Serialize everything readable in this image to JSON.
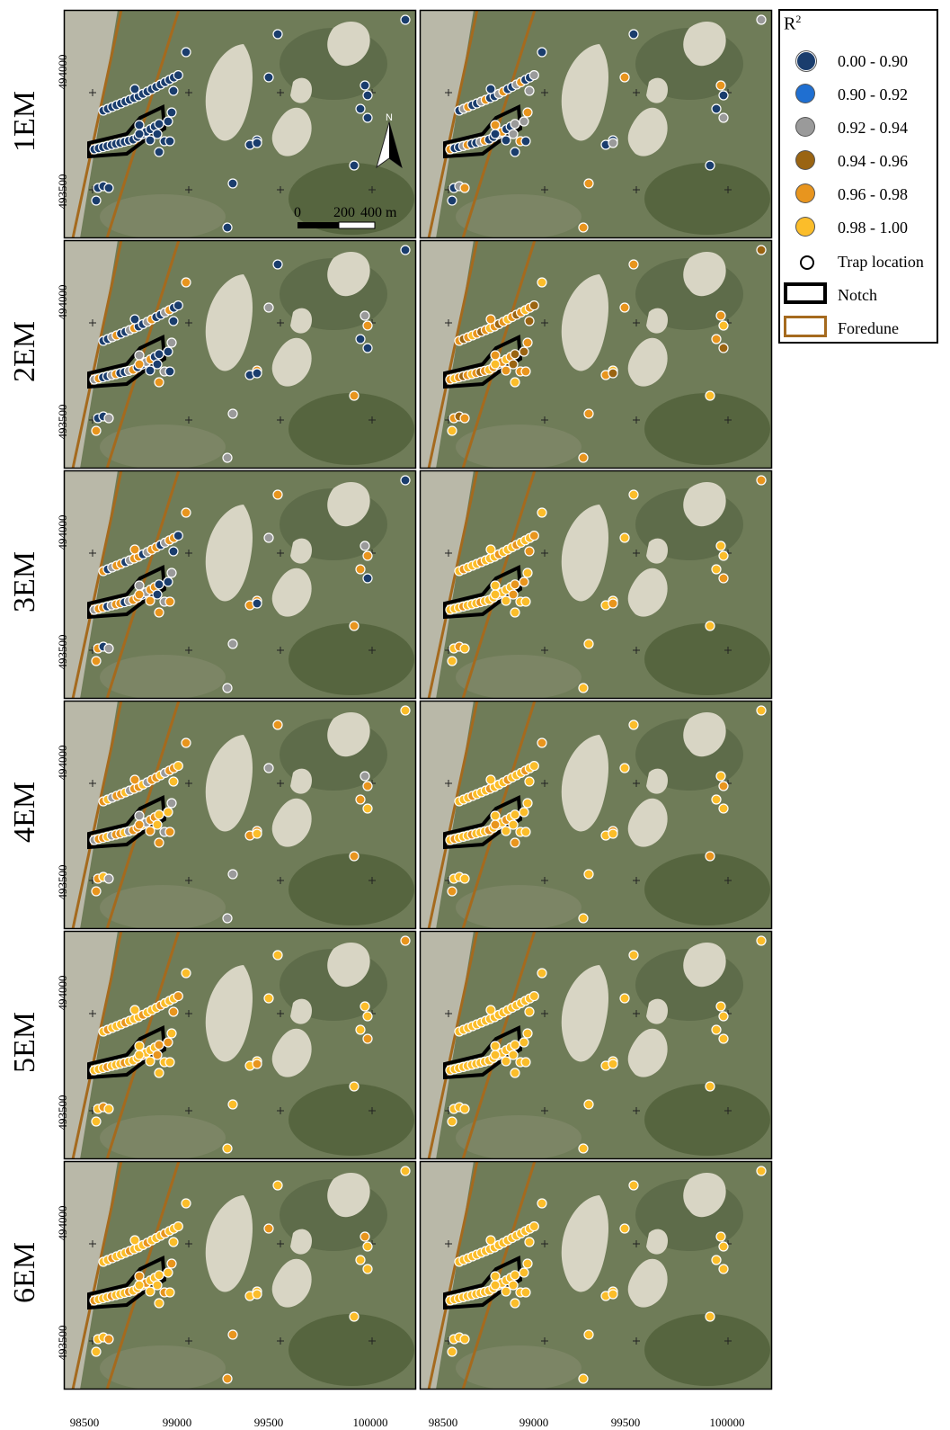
{
  "rows": [
    {
      "label": "1EM"
    },
    {
      "label": "2EM"
    },
    {
      "label": "3EM"
    },
    {
      "label": "4EM"
    },
    {
      "label": "5EM"
    },
    {
      "label": "6EM"
    }
  ],
  "x_ticks": [
    "98500",
    "99000",
    "99500",
    "100000"
  ],
  "y_ticks": [
    "494000",
    "493500"
  ],
  "scale_bar": {
    "labels": [
      "0",
      "200",
      "400 m"
    ]
  },
  "north_arrow": {
    "label": "N"
  },
  "legend": {
    "title": "R",
    "title_sup": "2",
    "classes": [
      {
        "label": "0.00 - 0.90",
        "color": "#1a3d6d"
      },
      {
        "label": "0.90 - 0.92",
        "color": "#1f6fd1"
      },
      {
        "label": "0.92 - 0.94",
        "color": "#9a9a9a"
      },
      {
        "label": "0.94 - 0.96",
        "color": "#9a6412"
      },
      {
        "label": "0.96 - 0.98",
        "color": "#e8951e"
      },
      {
        "label": "0.98 - 1.00",
        "color": "#fbbd2a"
      }
    ],
    "trap_location": "Trap location",
    "notch": "Notch",
    "foredune": "Foredune"
  },
  "colors": {
    "notch": "#000000",
    "foredune": "#a56a1e",
    "background_vegetation": "#6f7c58",
    "sand": "#d8d5c4"
  }
}
